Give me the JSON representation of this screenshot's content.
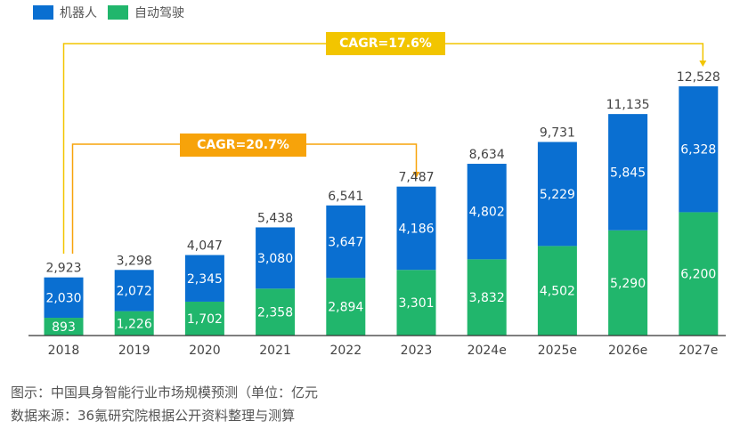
{
  "chart_data": {
    "type": "bar",
    "stacked": true,
    "categories": [
      "2018",
      "2019",
      "2020",
      "2021",
      "2022",
      "2023",
      "2024e",
      "2025e",
      "2026e",
      "2027e"
    ],
    "series": [
      {
        "name": "机器人",
        "color": "#0a6fd1",
        "values": [
          2030,
          2072,
          2345,
          3080,
          3647,
          4186,
          4802,
          5229,
          5845,
          6328
        ]
      },
      {
        "name": "自动驾驶",
        "color": "#21b66c",
        "values": [
          893,
          1226,
          1702,
          2358,
          2894,
          3301,
          3832,
          4502,
          5290,
          6200
        ]
      }
    ],
    "totals": [
      2923,
      3298,
      4047,
      5438,
      6541,
      7487,
      8634,
      9731,
      11135,
      12528
    ],
    "labels": {
      "robot": [
        "2,030",
        "2,072",
        "2,345",
        "3,080",
        "3,647",
        "4,186",
        "4,802",
        "5,229",
        "5,845",
        "6,328"
      ],
      "auto": [
        "893",
        "1,226",
        "1,702",
        "2,358",
        "2,894",
        "3,301",
        "3,832",
        "4,502",
        "5,290",
        "6,200"
      ],
      "totals": [
        "2,923",
        "3,298",
        "4,047",
        "5,438",
        "6,541",
        "7,487",
        "8,634",
        "9,731",
        "11,135",
        "12,528"
      ]
    },
    "annotations": [
      {
        "text": "CAGR=17.6%",
        "from": "2018",
        "to": "2027e",
        "color": "#f2c500"
      },
      {
        "text": "CAGR=20.7%",
        "from": "2018",
        "to": "2023",
        "color": "#f7a30a"
      }
    ],
    "legend_position": "top-left",
    "ylim": [
      0,
      12528
    ]
  },
  "caption": {
    "line1": "图示：中国具身智能行业市场规模预测（单位：亿元",
    "line2": "数据来源：36氪研究院根据公开资料整理与测算"
  }
}
